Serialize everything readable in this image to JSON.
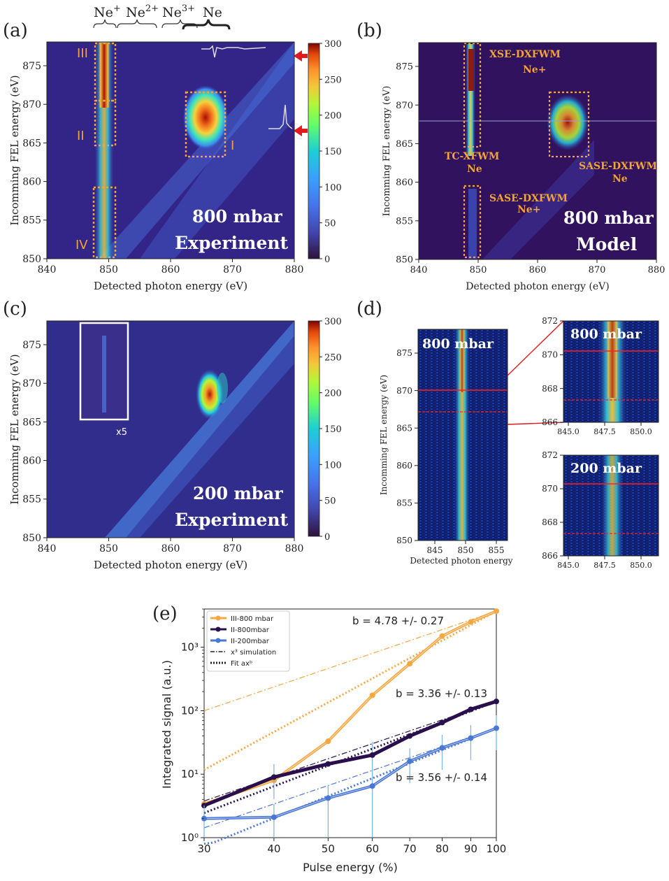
{
  "colors": {
    "navy": "#30125e",
    "navy_mid": "#3b2a8a",
    "orange_box": "#f2a33a",
    "orange_label": "#f2a33a",
    "red_arrow": "#e41a1c",
    "series_III": "#f5a742",
    "series_II800": "#2a0f4d",
    "series_II200": "#4a77d6",
    "errbar": "#7fb8ea"
  },
  "panel_a": {
    "tag": "(a)",
    "species": [
      "Ne",
      "Ne",
      "Ne",
      "Ne"
    ],
    "species_sup": [
      "+",
      "2+",
      "3+",
      ""
    ],
    "roman": [
      "III",
      "II",
      "IV",
      "I"
    ],
    "ylabel": "Incomming FEL energy (eV)",
    "xlabel": "Detected photon energy (eV)",
    "yticks": [
      "875",
      "870",
      "865",
      "860",
      "855",
      "850"
    ],
    "xticks": [
      "840",
      "850",
      "860",
      "870",
      "880"
    ],
    "cbar_ticks": [
      "300",
      "250",
      "200",
      "150",
      "100",
      "50",
      "0"
    ],
    "overlay_line1": "800 mbar",
    "overlay_line2": "Experiment"
  },
  "panel_b": {
    "tag": "(b)",
    "ylabel": "Incomming FEL energy (eV)",
    "xlabel": "Detected photon energy (eV)",
    "yticks": [
      "875",
      "870",
      "865",
      "860",
      "855",
      "850"
    ],
    "xticks": [
      "840",
      "850",
      "860",
      "870",
      "880"
    ],
    "labels": [
      "XSE-DXFWM",
      "Ne+",
      "TC-XFWM",
      "Ne",
      "SASE-DXFWM",
      "Ne",
      "SASE-DXFWM",
      "Ne+"
    ],
    "overlay_line1": "800 mbar",
    "overlay_line2": "Model"
  },
  "panel_c": {
    "tag": "(c)",
    "ylabel": "Incomming FEL energy (eV)",
    "xlabel": "Detected photon energy (eV)",
    "yticks": [
      "875",
      "870",
      "865",
      "860",
      "855",
      "850"
    ],
    "xticks": [
      "840",
      "850",
      "860",
      "870",
      "880"
    ],
    "cbar_ticks": [
      "300",
      "250",
      "200",
      "150",
      "100",
      "50",
      "0"
    ],
    "inset_note": "x5",
    "overlay_line1": "200 mbar",
    "overlay_line2": "Experiment"
  },
  "panel_d": {
    "tag": "(d)",
    "ylabel": "Incomming FEL energy (eV)",
    "xlabel": "Detected photon energy",
    "left_title": "800 mbar",
    "left_yticks": [
      "875",
      "870",
      "865",
      "860",
      "855",
      "850"
    ],
    "left_xticks": [
      "845",
      "850",
      "855"
    ],
    "tr_title": "800 mbar",
    "br_title": "200 mbar",
    "small_yticks": [
      "872",
      "870",
      "868",
      "866"
    ],
    "small_xticks": [
      "845.0",
      "847.5",
      "850.0"
    ]
  },
  "chart_data": [
    {
      "type": "line",
      "panel": "(e)",
      "xlabel": "Pulse energy (%)",
      "ylabel": "Integrated signal (a.u.)",
      "xscale": "log",
      "yscale": "log",
      "xlim": [
        30,
        100
      ],
      "ylim": [
        1,
        4000
      ],
      "xticks": [
        "30",
        "40",
        "50",
        "60",
        "70",
        "80",
        "90",
        "100"
      ],
      "yticks": [
        "10⁰",
        "10¹",
        "10²",
        "10³"
      ],
      "legend_position": "top-left",
      "series": [
        {
          "name": "III-800 mbar",
          "x": [
            30,
            40,
            50,
            60,
            70,
            80,
            90,
            100
          ],
          "y": [
            3.4,
            8.0,
            33,
            175,
            550,
            1500,
            2500,
            3700
          ]
        },
        {
          "name": "II-800mbar",
          "x": [
            30,
            40,
            50,
            60,
            70,
            80,
            90,
            100
          ],
          "y": [
            3.2,
            9.0,
            14.5,
            20,
            40,
            65,
            105,
            140
          ]
        },
        {
          "name": "II-200mbar",
          "x": [
            30,
            40,
            50,
            60,
            70,
            80,
            90,
            100
          ],
          "y": [
            2.0,
            2.1,
            4.2,
            6.5,
            16,
            26,
            37,
            53
          ]
        }
      ],
      "legend_extra": [
        "x³ simulation",
        "Fit axᵇ"
      ],
      "annotations": [
        "b = 4.78 +/- 0.27",
        "b = 3.36 +/- 0.13",
        "b = 3.56 +/- 0.14"
      ]
    }
  ]
}
